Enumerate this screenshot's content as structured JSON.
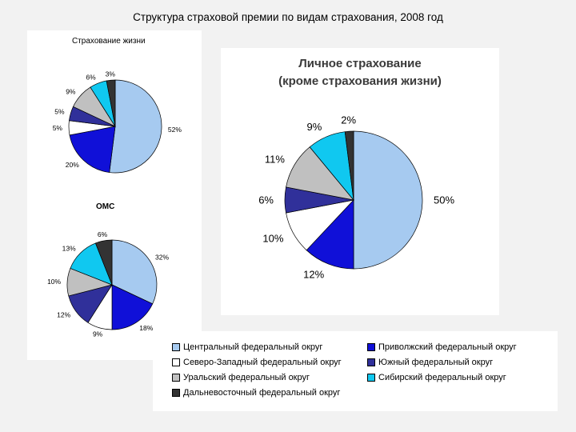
{
  "slide_title": "Структура страховой премии по видам страхования, 2008 год",
  "chart_data": [
    {
      "type": "pie",
      "title": "Страхование жизни",
      "categories": [
        "Центральный федеральный округ",
        "Приволжский федеральный округ",
        "Северо-Западный федеральный округ",
        "Южный федеральный округ",
        "Уральский федеральный округ",
        "Сибирский федеральный округ",
        "Дальневосточный федеральный округ"
      ],
      "values": [
        52,
        20,
        5,
        5,
        9,
        6,
        3
      ],
      "labels": [
        "52%",
        "20%",
        "5%",
        "5%",
        "9%",
        "6%",
        "3%"
      ]
    },
    {
      "type": "pie",
      "title": "ОМС",
      "categories": [
        "Центральный федеральный округ",
        "Приволжский федеральный округ",
        "Северо-Западный федеральный округ",
        "Южный федеральный округ",
        "Уральский федеральный округ",
        "Сибирский федеральный округ",
        "Дальневосточный федеральный округ"
      ],
      "values": [
        32,
        18,
        9,
        12,
        10,
        13,
        6
      ],
      "labels": [
        "32%",
        "18%",
        "9%",
        "12%",
        "10%",
        "13%",
        "6%"
      ]
    },
    {
      "type": "pie",
      "title_line1": "Личное страхование",
      "title_line2": "(кроме страхования жизни)",
      "categories": [
        "Центральный федеральный округ",
        "Приволжский федеральный округ",
        "Северо-Западный федеральный округ",
        "Южный федеральный округ",
        "Уральский федеральный округ",
        "Сибирский федеральный округ",
        "Дальневосточный федеральный округ"
      ],
      "values": [
        50,
        12,
        10,
        6,
        11,
        9,
        2
      ],
      "labels": [
        "50%",
        "12%",
        "10%",
        "6%",
        "11%",
        "9%",
        "2%"
      ]
    }
  ],
  "legend": [
    {
      "label": "Центральный федеральный округ",
      "color": "#a6caf0"
    },
    {
      "label": "Приволжский федеральный округ",
      "color": "#1010d8"
    },
    {
      "label": "Северо-Западный федеральный округ",
      "color": "#ffffff"
    },
    {
      "label": "Южный федеральный округ",
      "color": "#30309a"
    },
    {
      "label": "Уральский федеральный округ",
      "color": "#c0c0c0"
    },
    {
      "label": "Сибирский федеральный округ",
      "color": "#10c8f0"
    },
    {
      "label": "Дальневосточный федеральный округ",
      "color": "#333333"
    }
  ]
}
